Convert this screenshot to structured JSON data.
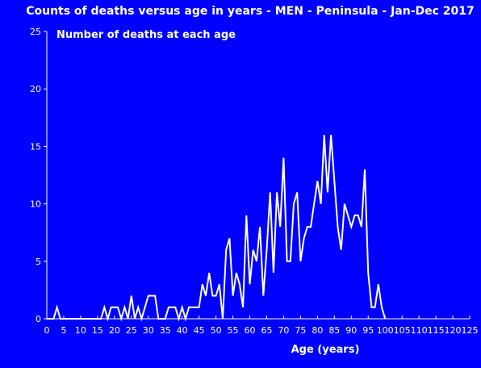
{
  "colors": {
    "background": "#0000ff",
    "foreground": "#ffffff"
  },
  "chart_data": {
    "type": "line",
    "title": "Counts of deaths versus age in years - MEN - Peninsula - Jan-Dec 2017",
    "series_label": "Number of deaths at each age",
    "xlabel": "Age (years)",
    "ylabel": "",
    "xlim": [
      0,
      125
    ],
    "ylim": [
      0,
      25
    ],
    "xticks": [
      0,
      5,
      10,
      15,
      20,
      25,
      30,
      35,
      40,
      45,
      50,
      55,
      60,
      65,
      70,
      75,
      80,
      85,
      90,
      95,
      100,
      105,
      110,
      115,
      120,
      125
    ],
    "yticks": [
      0,
      5,
      10,
      15,
      20,
      25
    ],
    "grid": false,
    "series": [
      {
        "x": [
          0,
          1,
          2,
          3,
          4,
          5,
          6,
          7,
          8,
          9,
          10,
          11,
          12,
          13,
          14,
          15,
          16,
          17,
          18,
          19,
          20,
          21,
          22,
          23,
          24,
          25,
          26,
          27,
          28,
          29,
          30,
          31,
          32,
          33,
          34,
          35,
          36,
          37,
          38,
          39,
          40,
          41,
          42,
          43,
          44,
          45,
          46,
          47,
          48,
          49,
          50,
          51,
          52,
          53,
          54,
          55,
          56,
          57,
          58,
          59,
          60,
          61,
          62,
          63,
          64,
          65,
          66,
          67,
          68,
          69,
          70,
          71,
          72,
          73,
          74,
          75,
          76,
          77,
          78,
          79,
          80,
          81,
          82,
          83,
          84,
          85,
          86,
          87,
          88,
          89,
          90,
          91,
          92,
          93,
          94,
          95,
          96,
          97,
          98,
          99,
          100
        ],
        "y": [
          0,
          0,
          0,
          1,
          0,
          0,
          0,
          0,
          0,
          0,
          0,
          0,
          0,
          0,
          0,
          0,
          0,
          1,
          0,
          1,
          1,
          1,
          0,
          1,
          0,
          2,
          0,
          1,
          0,
          1,
          2,
          2,
          2,
          0,
          0,
          0,
          1,
          1,
          1,
          0,
          1,
          0,
          1,
          1,
          1,
          1,
          3,
          2,
          4,
          2,
          2,
          3,
          0,
          6,
          7,
          2,
          4,
          3,
          1,
          9,
          3,
          6,
          5,
          8,
          2,
          6,
          11,
          4,
          11,
          8,
          14,
          5,
          5,
          10,
          11,
          5,
          7,
          8,
          8,
          10,
          12,
          10,
          16,
          11,
          16,
          12,
          8,
          6,
          10,
          9,
          8,
          9,
          9,
          8,
          13,
          4,
          1,
          1,
          3,
          1,
          0
        ]
      }
    ]
  }
}
